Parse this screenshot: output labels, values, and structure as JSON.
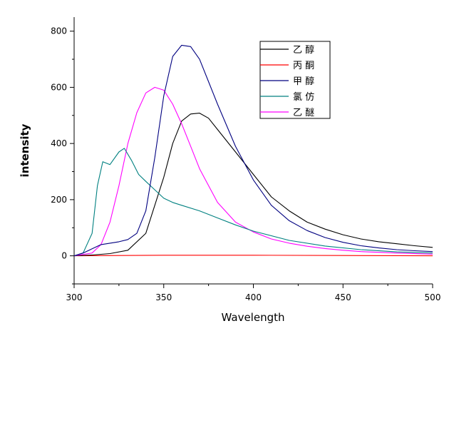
{
  "chart_data": {
    "type": "line",
    "xlabel": "Wavelength",
    "ylabel": "intensity",
    "xlim": [
      300,
      500
    ],
    "ylim": [
      -100,
      850
    ],
    "xticks": [
      300,
      350,
      400,
      450,
      500
    ],
    "yticks": [
      0,
      200,
      400,
      600,
      800
    ],
    "grid": false,
    "legend_position": "top-center",
    "series": [
      {
        "name": "乙 醇",
        "color": "#000000",
        "x": [
          300,
          310,
          320,
          330,
          340,
          350,
          355,
          360,
          365,
          370,
          375,
          380,
          390,
          400,
          410,
          420,
          430,
          440,
          450,
          460,
          470,
          480,
          490,
          500
        ],
        "y": [
          0,
          3,
          8,
          20,
          80,
          280,
          400,
          480,
          505,
          508,
          490,
          450,
          370,
          290,
          210,
          160,
          120,
          95,
          75,
          60,
          50,
          43,
          36,
          30
        ]
      },
      {
        "name": "丙 酮",
        "color": "#ff0000",
        "x": [
          300,
          350,
          400,
          450,
          500
        ],
        "y": [
          0,
          2,
          2,
          1,
          0
        ]
      },
      {
        "name": "甲 醇",
        "color": "#000080",
        "x": [
          300,
          305,
          310,
          315,
          320,
          325,
          330,
          335,
          340,
          345,
          350,
          355,
          360,
          365,
          370,
          375,
          380,
          390,
          400,
          410,
          420,
          430,
          440,
          450,
          460,
          470,
          480,
          490,
          500
        ],
        "y": [
          0,
          10,
          25,
          40,
          45,
          50,
          58,
          80,
          160,
          350,
          570,
          710,
          750,
          745,
          700,
          620,
          540,
          390,
          270,
          180,
          125,
          90,
          65,
          48,
          36,
          28,
          22,
          18,
          15
        ]
      },
      {
        "name": "氯 仿",
        "color": "#008080",
        "x": [
          300,
          305,
          310,
          313,
          316,
          320,
          325,
          328,
          332,
          336,
          340,
          345,
          350,
          355,
          360,
          370,
          380,
          390,
          400,
          420,
          440,
          460,
          480,
          500
        ],
        "y": [
          0,
          10,
          80,
          250,
          335,
          325,
          370,
          383,
          340,
          290,
          265,
          235,
          205,
          190,
          180,
          160,
          135,
          110,
          88,
          55,
          35,
          22,
          14,
          10
        ]
      },
      {
        "name": "乙 醚",
        "color": "#ff00ff",
        "x": [
          300,
          310,
          315,
          320,
          325,
          330,
          335,
          340,
          345,
          350,
          355,
          360,
          365,
          370,
          380,
          390,
          400,
          410,
          420,
          430,
          440,
          450,
          460,
          480,
          500
        ],
        "y": [
          0,
          10,
          40,
          120,
          250,
          400,
          510,
          580,
          600,
          590,
          540,
          470,
          390,
          310,
          190,
          120,
          85,
          60,
          45,
          34,
          26,
          20,
          15,
          10,
          6
        ]
      }
    ]
  }
}
